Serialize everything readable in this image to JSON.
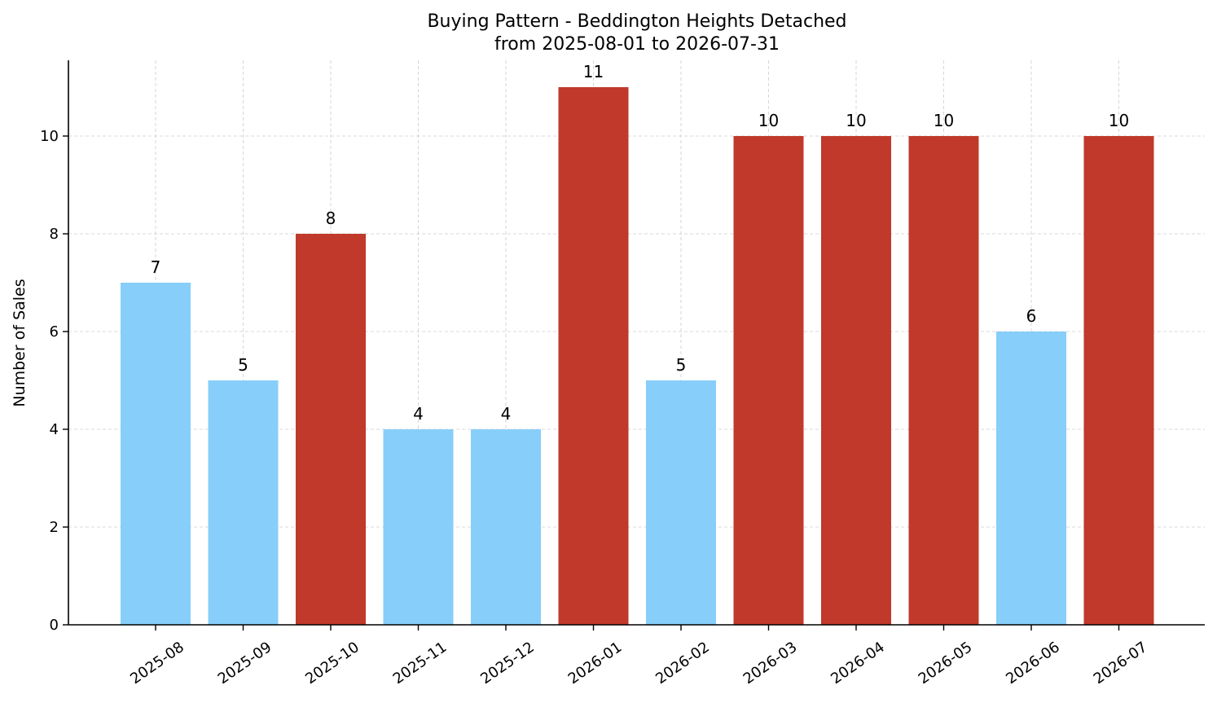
{
  "chart_data": {
    "type": "bar",
    "title": "Buying Pattern - Beddington Heights Detached",
    "subtitle": "from 2025-08-01 to 2026-07-31",
    "xlabel": "",
    "ylabel": "Number of Sales",
    "categories": [
      "2025-08",
      "2025-09",
      "2025-10",
      "2025-11",
      "2025-12",
      "2026-01",
      "2026-02",
      "2026-03",
      "2026-04",
      "2026-05",
      "2026-06",
      "2026-07"
    ],
    "values": [
      7,
      5,
      8,
      4,
      4,
      11,
      5,
      10,
      10,
      10,
      6,
      10
    ],
    "bar_colors": [
      "#87CEFA",
      "#87CEFA",
      "#C0392B",
      "#87CEFA",
      "#87CEFA",
      "#C0392B",
      "#87CEFA",
      "#C0392B",
      "#C0392B",
      "#C0392B",
      "#87CEFA",
      "#C0392B"
    ],
    "ylim": [
      0,
      11.55
    ],
    "yticks": [
      0,
      2,
      4,
      6,
      8,
      10
    ],
    "grid": true,
    "legend": "none"
  }
}
